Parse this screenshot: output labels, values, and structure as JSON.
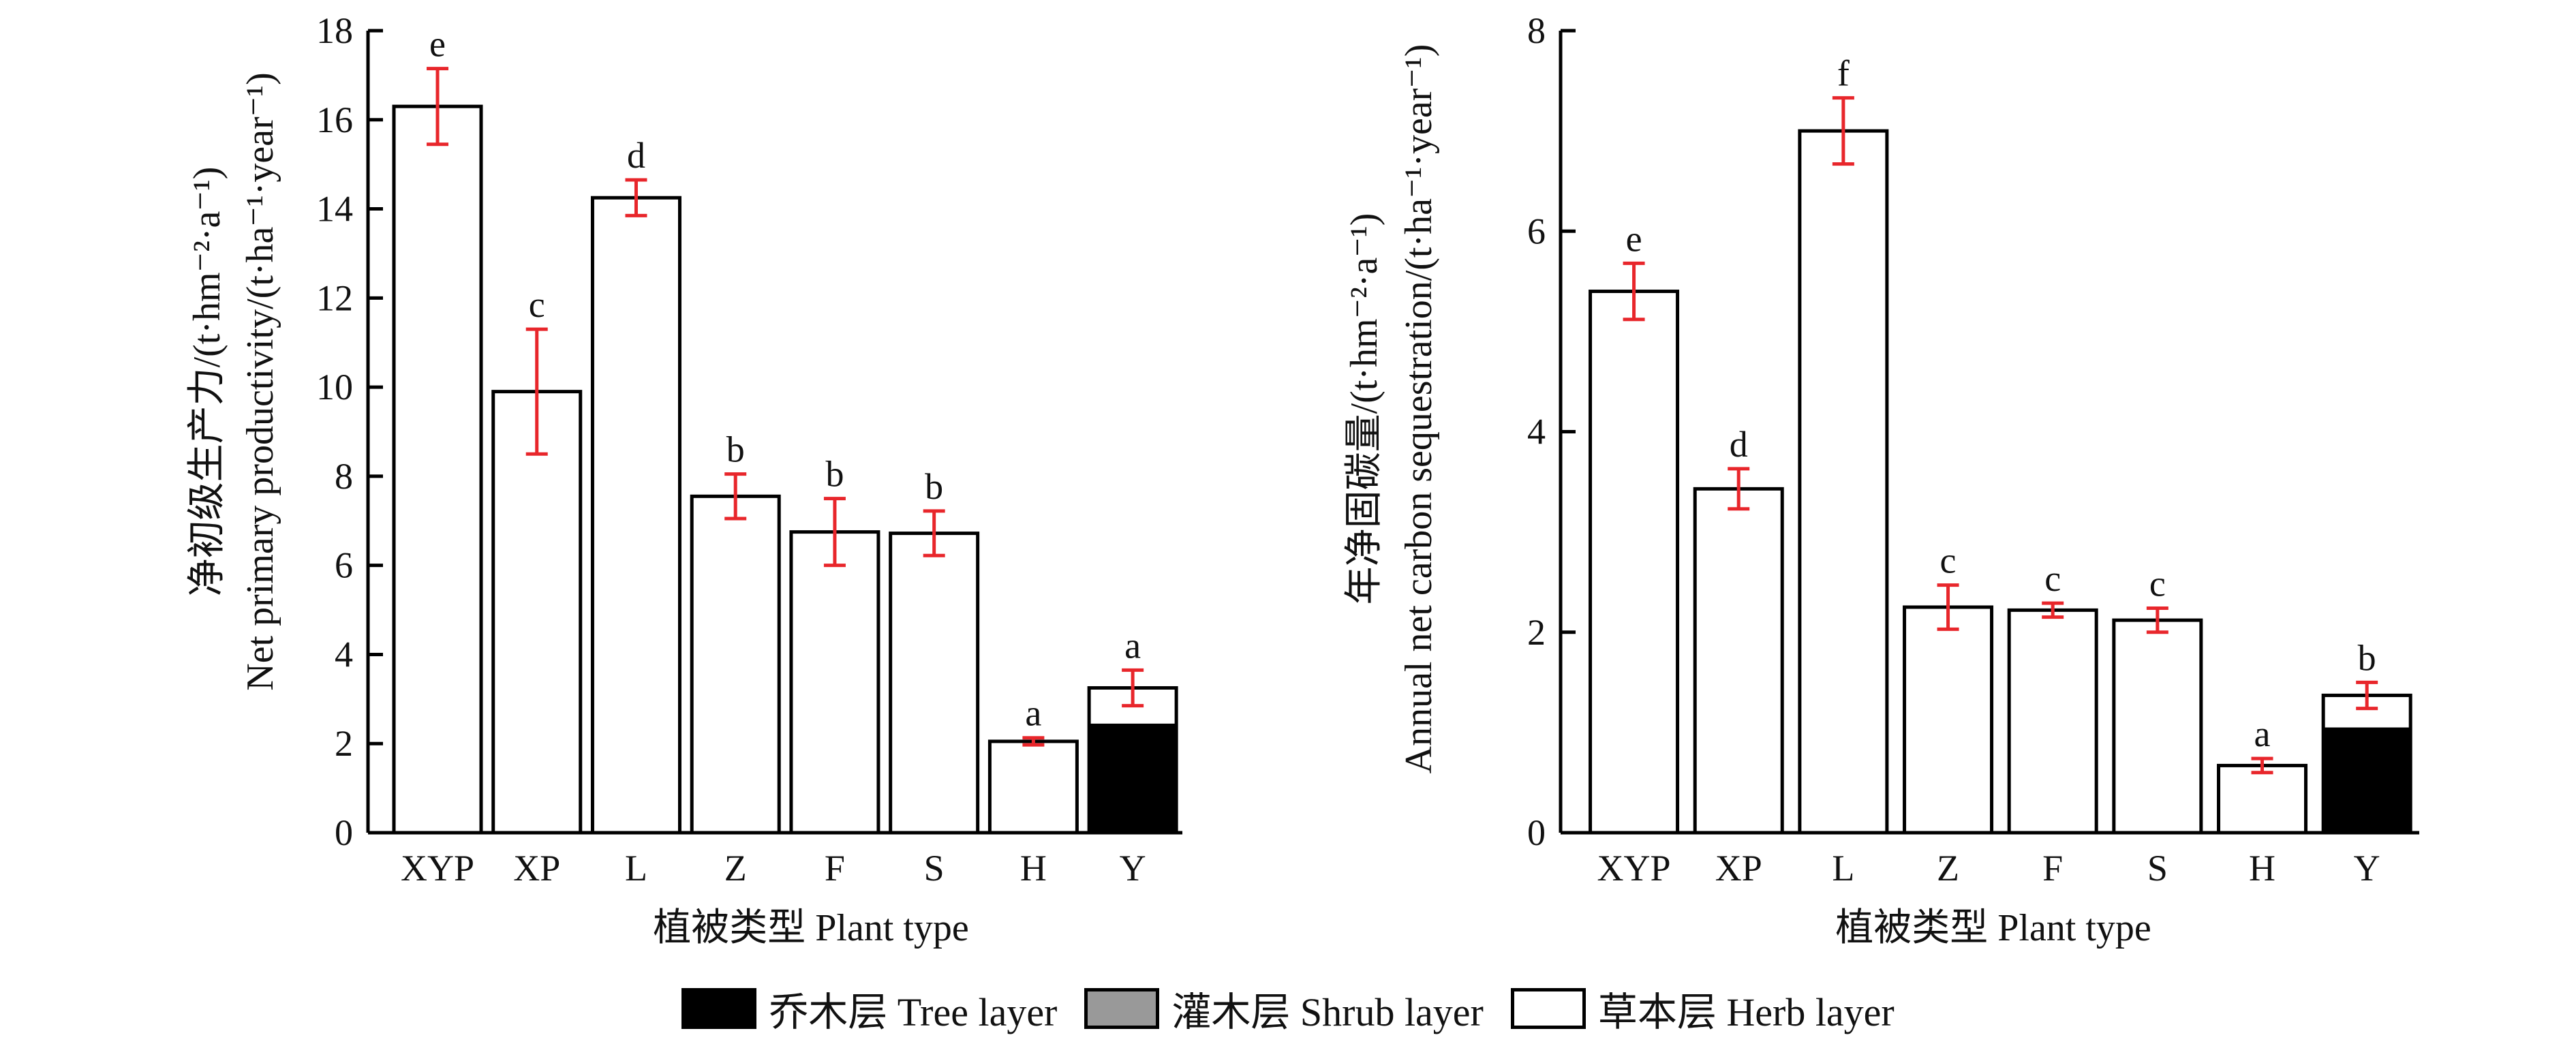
{
  "colors": {
    "axis": "#000000",
    "bar_outline": "#000000",
    "tree_layer": "#000000",
    "shrub_layer": "#999999",
    "herb_layer": "#ffffff",
    "error_bar": "#e8262b",
    "text": "#111111"
  },
  "legend": [
    {
      "key": "tree",
      "label": "乔木层 Tree layer",
      "color": "#000000"
    },
    {
      "key": "shrub",
      "label": "灌木层 Shrub layer",
      "color": "#999999"
    },
    {
      "key": "herb",
      "label": "草本层 Herb layer",
      "color": "#ffffff"
    }
  ],
  "chart_data": [
    {
      "type": "bar",
      "stacked": true,
      "ylabel_cn": "净初级生产力/(t·hm⁻²·a⁻¹)",
      "ylabel_en": "Net primary productivity/(t·ha⁻¹·year⁻¹)",
      "xlabel": "植被类型 Plant type",
      "ylim": [
        0,
        18
      ],
      "yticks": [
        "0",
        "2",
        "4",
        "6",
        "8",
        "10",
        "12",
        "14",
        "16",
        "18"
      ],
      "categories": [
        "XYP",
        "XP",
        "L",
        "Z",
        "F",
        "S",
        "H",
        "Y"
      ],
      "series": [
        {
          "name": "乔木层 Tree layer",
          "values": [
            0,
            0,
            0,
            0,
            0,
            0,
            0,
            2.45
          ]
        },
        {
          "name": "灌木层 Shrub layer",
          "values": [
            0,
            0,
            0,
            0,
            0,
            0,
            0,
            0
          ]
        },
        {
          "name": "草本层 Herb layer",
          "values": [
            16.3,
            9.9,
            14.25,
            7.55,
            6.75,
            6.72,
            2.05,
            0.8
          ]
        }
      ],
      "totals": [
        16.3,
        9.9,
        14.25,
        7.55,
        6.75,
        6.72,
        2.05,
        3.25
      ],
      "errors": [
        0.85,
        1.4,
        0.4,
        0.5,
        0.75,
        0.5,
        0.08,
        0.4
      ],
      "significance_letters": [
        "e",
        "c",
        "d",
        "b",
        "b",
        "b",
        "a",
        "a"
      ],
      "legend_position": "bottom"
    },
    {
      "type": "bar",
      "stacked": true,
      "ylabel_cn": "年净固碳量/(t·hm⁻²·a⁻¹)",
      "ylabel_en": "Annual net carbon sequestration/(t·ha⁻¹·year⁻¹)",
      "xlabel": "植被类型 Plant type",
      "ylim": [
        0,
        8
      ],
      "yticks": [
        "0",
        "2",
        "4",
        "6",
        "8"
      ],
      "categories": [
        "XYP",
        "XP",
        "L",
        "Z",
        "F",
        "S",
        "H",
        "Y"
      ],
      "series": [
        {
          "name": "乔木层 Tree layer",
          "values": [
            0,
            0,
            0,
            0,
            0,
            0,
            0,
            1.05
          ]
        },
        {
          "name": "灌木层 Shrub layer",
          "values": [
            0,
            0,
            0,
            0,
            0,
            0,
            0,
            0
          ]
        },
        {
          "name": "草本层 Herb layer",
          "values": [
            5.4,
            3.43,
            7.0,
            2.25,
            2.22,
            2.12,
            0.67,
            0.32
          ]
        }
      ],
      "totals": [
        5.4,
        3.43,
        7.0,
        2.25,
        2.22,
        2.12,
        0.67,
        1.37
      ],
      "errors": [
        0.28,
        0.2,
        0.33,
        0.22,
        0.07,
        0.12,
        0.07,
        0.13
      ],
      "significance_letters": [
        "e",
        "d",
        "f",
        "c",
        "c",
        "c",
        "a",
        "b"
      ],
      "legend_position": "bottom"
    }
  ]
}
